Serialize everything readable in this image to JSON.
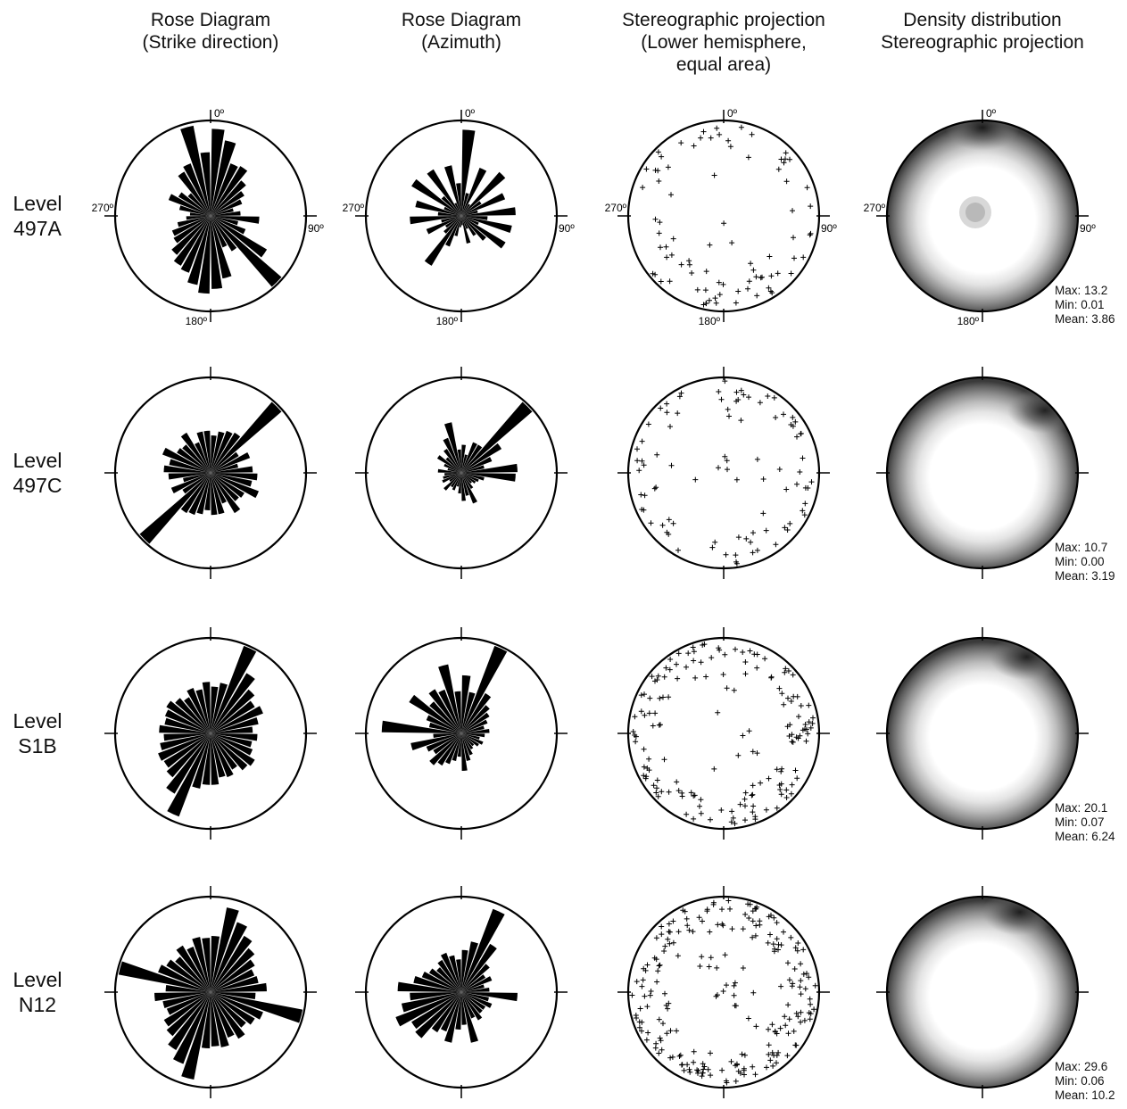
{
  "column_titles": [
    "Rose Diagram\n(Strike direction)",
    "Rose Diagram\n(Azimuth)",
    "Stereographic projection\n(Lower hemisphere,\nequal area)",
    "Density distribution\nStereographic projection"
  ],
  "direction_labels": {
    "north": "0º",
    "east": "90º",
    "south": "180º",
    "west": "270º"
  },
  "rows": [
    {
      "label": "Level\n497A",
      "show_direction_labels": true,
      "stats": "Max: 13.2\nMin: 0.01\nMean: 3.86"
    },
    {
      "label": "Level\n497C",
      "show_direction_labels": false,
      "stats": "Max: 10.7\nMin: 0.00\nMean: 3.19"
    },
    {
      "label": "Level\nS1B",
      "show_direction_labels": false,
      "stats": "Max: 20.1\nMin: 0.07\nMean: 6.24"
    },
    {
      "label": "Level\nN12",
      "show_direction_labels": false,
      "stats": "Max: 29.6\nMin: 0.06\nMean: 10.2"
    }
  ],
  "chart_data": [
    {
      "type": "rose",
      "panel": "Rose Diagram (Strike direction)",
      "bin_width_deg": 10,
      "value_range": [
        0,
        1
      ],
      "series": [
        {
          "row": "Level 497A",
          "values": [
            0.93,
            0.82,
            0.6,
            0.62,
            0.5,
            0.42,
            0.36,
            0.25,
            0.32,
            0.52,
            0.3,
            0.4,
            0.7,
            1.0,
            0.44,
            0.36,
            0.68,
            0.78,
            0.83,
            0.75,
            0.65,
            0.62,
            0.55,
            0.46,
            0.44,
            0.36,
            0.26,
            0.22,
            0.34,
            0.48,
            0.4,
            0.32,
            0.55,
            0.6,
            0.98,
            0.68
          ]
        },
        {
          "row": "Level 497C",
          "values": [
            0.4,
            0.45,
            0.48,
            0.5,
            1.0,
            0.35,
            0.45,
            0.3,
            0.45,
            0.5,
            0.45,
            0.55,
            0.42,
            0.4,
            0.5,
            0.35,
            0.45,
            0.45,
            0.4,
            0.45,
            0.48,
            0.5,
            1.0,
            0.35,
            0.45,
            0.3,
            0.45,
            0.5,
            0.45,
            0.55,
            0.42,
            0.4,
            0.5,
            0.35,
            0.45,
            0.45
          ]
        },
        {
          "row": "Level S1B",
          "values": [
            0.5,
            0.55,
            1.0,
            0.75,
            0.62,
            0.55,
            0.6,
            0.52,
            0.45,
            0.5,
            0.45,
            0.48,
            0.55,
            0.52,
            0.45,
            0.5,
            0.48,
            0.55,
            0.55,
            0.6,
            0.95,
            0.75,
            0.62,
            0.58,
            0.6,
            0.55,
            0.5,
            0.55,
            0.5,
            0.52,
            0.55,
            0.5,
            0.45,
            0.52,
            0.48,
            0.55
          ]
        },
        {
          "row": "Level N12",
          "values": [
            0.6,
            0.92,
            0.8,
            0.7,
            0.62,
            0.55,
            0.5,
            0.52,
            0.6,
            0.48,
            1.0,
            0.6,
            0.55,
            0.5,
            0.58,
            0.52,
            0.6,
            0.58,
            0.6,
            0.95,
            0.82,
            0.72,
            0.62,
            0.58,
            0.5,
            0.52,
            0.6,
            0.48,
            1.0,
            0.6,
            0.55,
            0.5,
            0.58,
            0.52,
            0.6,
            0.58
          ]
        }
      ]
    },
    {
      "type": "rose",
      "panel": "Rose Diagram (Azimuth)",
      "bin_width_deg": 10,
      "value_range": [
        0,
        1
      ],
      "series": [
        {
          "row": "Level 497A",
          "values": [
            0.92,
            0.25,
            0.55,
            0.15,
            0.62,
            0.25,
            0.5,
            0.18,
            0.58,
            0.28,
            0.55,
            0.2,
            0.55,
            0.35,
            0.25,
            0.15,
            0.3,
            0.1,
            0.12,
            0.22,
            0.35,
            0.62,
            0.25,
            0.2,
            0.4,
            0.22,
            0.55,
            0.25,
            0.5,
            0.2,
            0.62,
            0.28,
            0.58,
            0.15,
            0.55,
            0.35
          ]
        },
        {
          "row": "Level 497C",
          "values": [
            0.3,
            0.2,
            0.35,
            0.35,
            1.0,
            0.5,
            0.35,
            0.25,
            0.6,
            0.58,
            0.25,
            0.2,
            0.18,
            0.15,
            0.2,
            0.35,
            0.25,
            0.3,
            0.22,
            0.15,
            0.2,
            0.18,
            0.25,
            0.15,
            0.22,
            0.2,
            0.18,
            0.25,
            0.15,
            0.2,
            0.3,
            0.22,
            0.3,
            0.4,
            0.55,
            0.25
          ]
        },
        {
          "row": "Level S1B",
          "values": [
            0.62,
            0.45,
            1.0,
            0.5,
            0.4,
            0.35,
            0.3,
            0.25,
            0.3,
            0.25,
            0.2,
            0.25,
            0.22,
            0.18,
            0.2,
            0.25,
            0.3,
            0.4,
            0.25,
            0.3,
            0.35,
            0.4,
            0.45,
            0.35,
            0.4,
            0.55,
            0.3,
            0.85,
            0.35,
            0.4,
            0.65,
            0.45,
            0.55,
            0.5,
            0.75,
            0.45
          ]
        },
        {
          "row": "Level N12",
          "values": [
            0.45,
            0.55,
            0.95,
            0.6,
            0.4,
            0.3,
            0.35,
            0.25,
            0.3,
            0.6,
            0.3,
            0.35,
            0.3,
            0.3,
            0.35,
            0.3,
            0.55,
            0.35,
            0.4,
            0.55,
            0.45,
            0.5,
            0.65,
            0.62,
            0.75,
            0.65,
            0.55,
            0.68,
            0.52,
            0.45,
            0.4,
            0.35,
            0.4,
            0.45,
            0.4,
            0.35
          ]
        }
      ]
    },
    {
      "type": "scatter",
      "panel": "Stereographic projection (Lower hemisphere, equal area)",
      "point_count_by_row": {
        "Level 497A": 85,
        "Level 497C": 90,
        "Level S1B": 160,
        "Level N12": 220
      },
      "distribution": "points concentrated near the primitive circle (steeply dipping planes)"
    },
    {
      "type": "heatmap",
      "panel": "Density distribution Stereographic projection",
      "series": [
        {
          "row": "Level 497A",
          "max": 13.2,
          "min": 0.01,
          "mean": 3.86
        },
        {
          "row": "Level 497C",
          "max": 10.7,
          "min": 0.0,
          "mean": 3.19
        },
        {
          "row": "Level S1B",
          "max": 20.1,
          "min": 0.07,
          "mean": 6.24
        },
        {
          "row": "Level N12",
          "max": 29.6,
          "min": 0.06,
          "mean": 10.2
        }
      ]
    }
  ]
}
